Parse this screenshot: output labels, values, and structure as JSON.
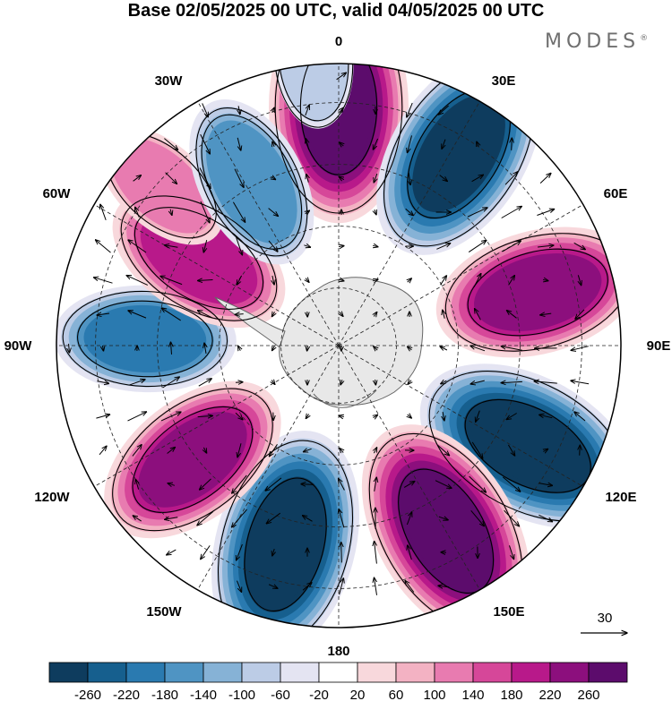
{
  "title": "Base 02/05/2025 00 UTC, valid 04/05/2025 00 UTC",
  "brand": {
    "name": "MODES",
    "mark": "®"
  },
  "map": {
    "projection": "south-polar-stereographic",
    "longitude_labels": {
      "top": "0",
      "top_right": "30E",
      "right_upper": "60E",
      "right": "90E",
      "right_lower": "120E",
      "bottom_right": "150E",
      "bottom": "180",
      "bottom_left": "150W",
      "left_lower": "120W",
      "left": "90W",
      "left_upper": "60W",
      "top_left": "30W"
    },
    "vector_reference": {
      "value": "30",
      "icon": "arrow-right-icon"
    },
    "land_color": "#e8e8e8",
    "coast_color": "#666666"
  },
  "colorbar": {
    "tick_labels": [
      "-260",
      "-220",
      "-180",
      "-140",
      "-100",
      "-60",
      "-20",
      "20",
      "60",
      "100",
      "140",
      "180",
      "220",
      "260"
    ],
    "colors": [
      "#0e3c5e",
      "#165f8e",
      "#2a7ab0",
      "#4f94c3",
      "#86b2d6",
      "#bccce6",
      "#e4e4f2",
      "#ffffff",
      "#f8d8dc",
      "#f3b2c3",
      "#e87bb0",
      "#d64799",
      "#b8198a",
      "#8c0f7d",
      "#5c0c6c"
    ]
  },
  "anomalies": [
    {
      "sign": "positive",
      "peak": 300,
      "center_deg": [
        0,
        58
      ]
    },
    {
      "sign": "negative",
      "peak": -280,
      "center_deg": [
        32,
        55
      ]
    },
    {
      "sign": "positive",
      "peak": 240,
      "center_deg": [
        75,
        50
      ]
    },
    {
      "sign": "negative",
      "peak": -300,
      "center_deg": [
        118,
        52
      ]
    },
    {
      "sign": "positive",
      "peak": 300,
      "center_deg": [
        150,
        52
      ]
    },
    {
      "sign": "negative",
      "peak": -300,
      "center_deg": [
        -165,
        50
      ]
    },
    {
      "sign": "positive",
      "peak": 230,
      "center_deg": [
        -128,
        45
      ]
    },
    {
      "sign": "negative",
      "peak": -180,
      "center_deg": [
        -88,
        47
      ]
    },
    {
      "sign": "positive",
      "peak": 200,
      "center_deg": [
        -58,
        40
      ]
    },
    {
      "sign": "positive",
      "peak": 100,
      "center_deg": [
        -48,
        58
      ]
    },
    {
      "sign": "negative",
      "peak": -170,
      "center_deg": [
        -28,
        45
      ]
    },
    {
      "sign": "negative",
      "peak": -80,
      "center_deg": [
        -5,
        70
      ]
    }
  ]
}
